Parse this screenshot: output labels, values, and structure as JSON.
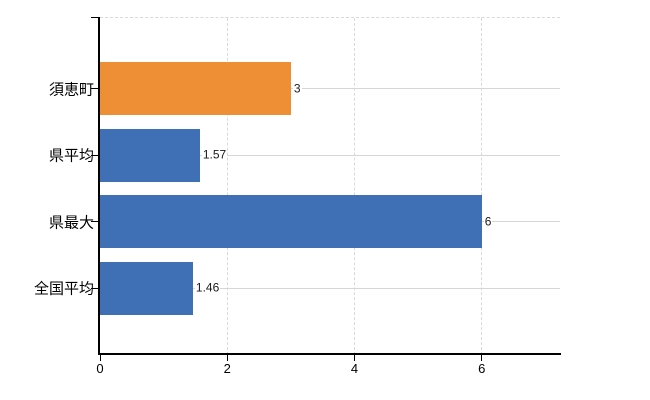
{
  "chart_data": {
    "type": "bar",
    "orientation": "horizontal",
    "title": "",
    "xlabel": "",
    "ylabel": "",
    "categories": [
      "須恵町",
      "県平均",
      "県最大",
      "全国平均"
    ],
    "values": [
      3,
      1.57,
      6,
      1.46
    ],
    "value_labels": [
      "3",
      "1.57",
      "6",
      "1.46"
    ],
    "bar_colors": [
      "#ee8e35",
      "#3f6fb5",
      "#3f6fb5",
      "#3f6fb5"
    ],
    "highlight_color": "#ee8e35",
    "base_color": "#3f6fb5",
    "xlim": [
      0,
      7.23
    ],
    "x_ticks": [
      0,
      2,
      4,
      6
    ],
    "x_tick_labels": [
      "0",
      "2",
      "4",
      "6"
    ],
    "grid": "on",
    "legend": "none",
    "axis_color": "#000000",
    "gridline_color": "#d9d9d9",
    "row_line_color": "#d6d6d6",
    "category_label_color": "#000000",
    "value_label_color": "#1a1a1a",
    "background": "#ffffff"
  }
}
